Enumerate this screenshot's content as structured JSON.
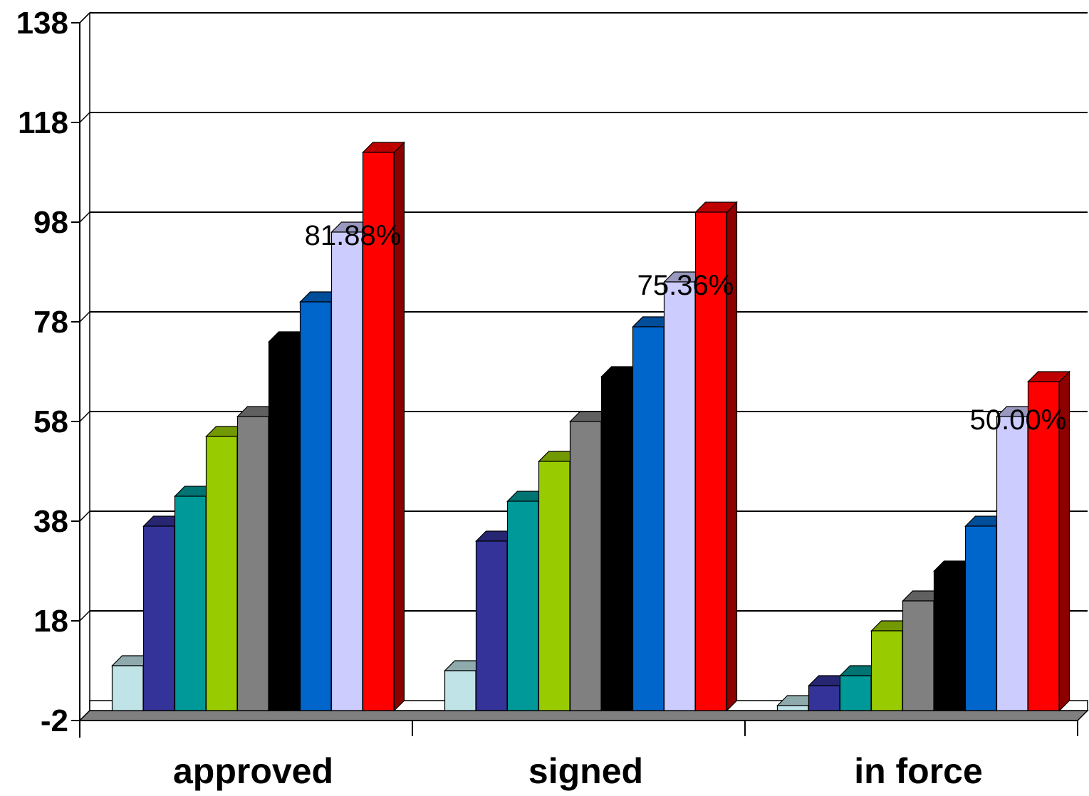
{
  "chart_data": {
    "type": "bar",
    "style": "3d-clustered-column",
    "title": "",
    "xlabel": "",
    "ylabel": "",
    "ylim": [
      -2,
      138
    ],
    "yticks": [
      -2,
      18,
      38,
      58,
      78,
      98,
      118,
      138
    ],
    "grid": true,
    "legend": "none",
    "categories": [
      "approved",
      "signed",
      "in force"
    ],
    "series": [
      {
        "color": "#bfe3e6",
        "values": [
          9,
          8,
          1
        ]
      },
      {
        "color": "#333399",
        "values": [
          37,
          34,
          5
        ]
      },
      {
        "color": "#009999",
        "values": [
          43,
          42,
          7
        ]
      },
      {
        "color": "#99cc00",
        "values": [
          55,
          50,
          16
        ]
      },
      {
        "color": "#808080",
        "values": [
          59,
          58,
          22
        ]
      },
      {
        "color": "#000000",
        "values": [
          74,
          67,
          28
        ]
      },
      {
        "color": "#0066cc",
        "values": [
          82,
          77,
          37
        ]
      },
      {
        "color": "#ccccff",
        "values": [
          96,
          86,
          59
        ]
      },
      {
        "color": "#ff0000",
        "values": [
          112,
          100,
          66
        ]
      }
    ],
    "annotations": [
      {
        "category": "approved",
        "text": "81.88%"
      },
      {
        "category": "signed",
        "text": "75.36%"
      },
      {
        "category": "in force",
        "text": "50.00%"
      }
    ]
  }
}
